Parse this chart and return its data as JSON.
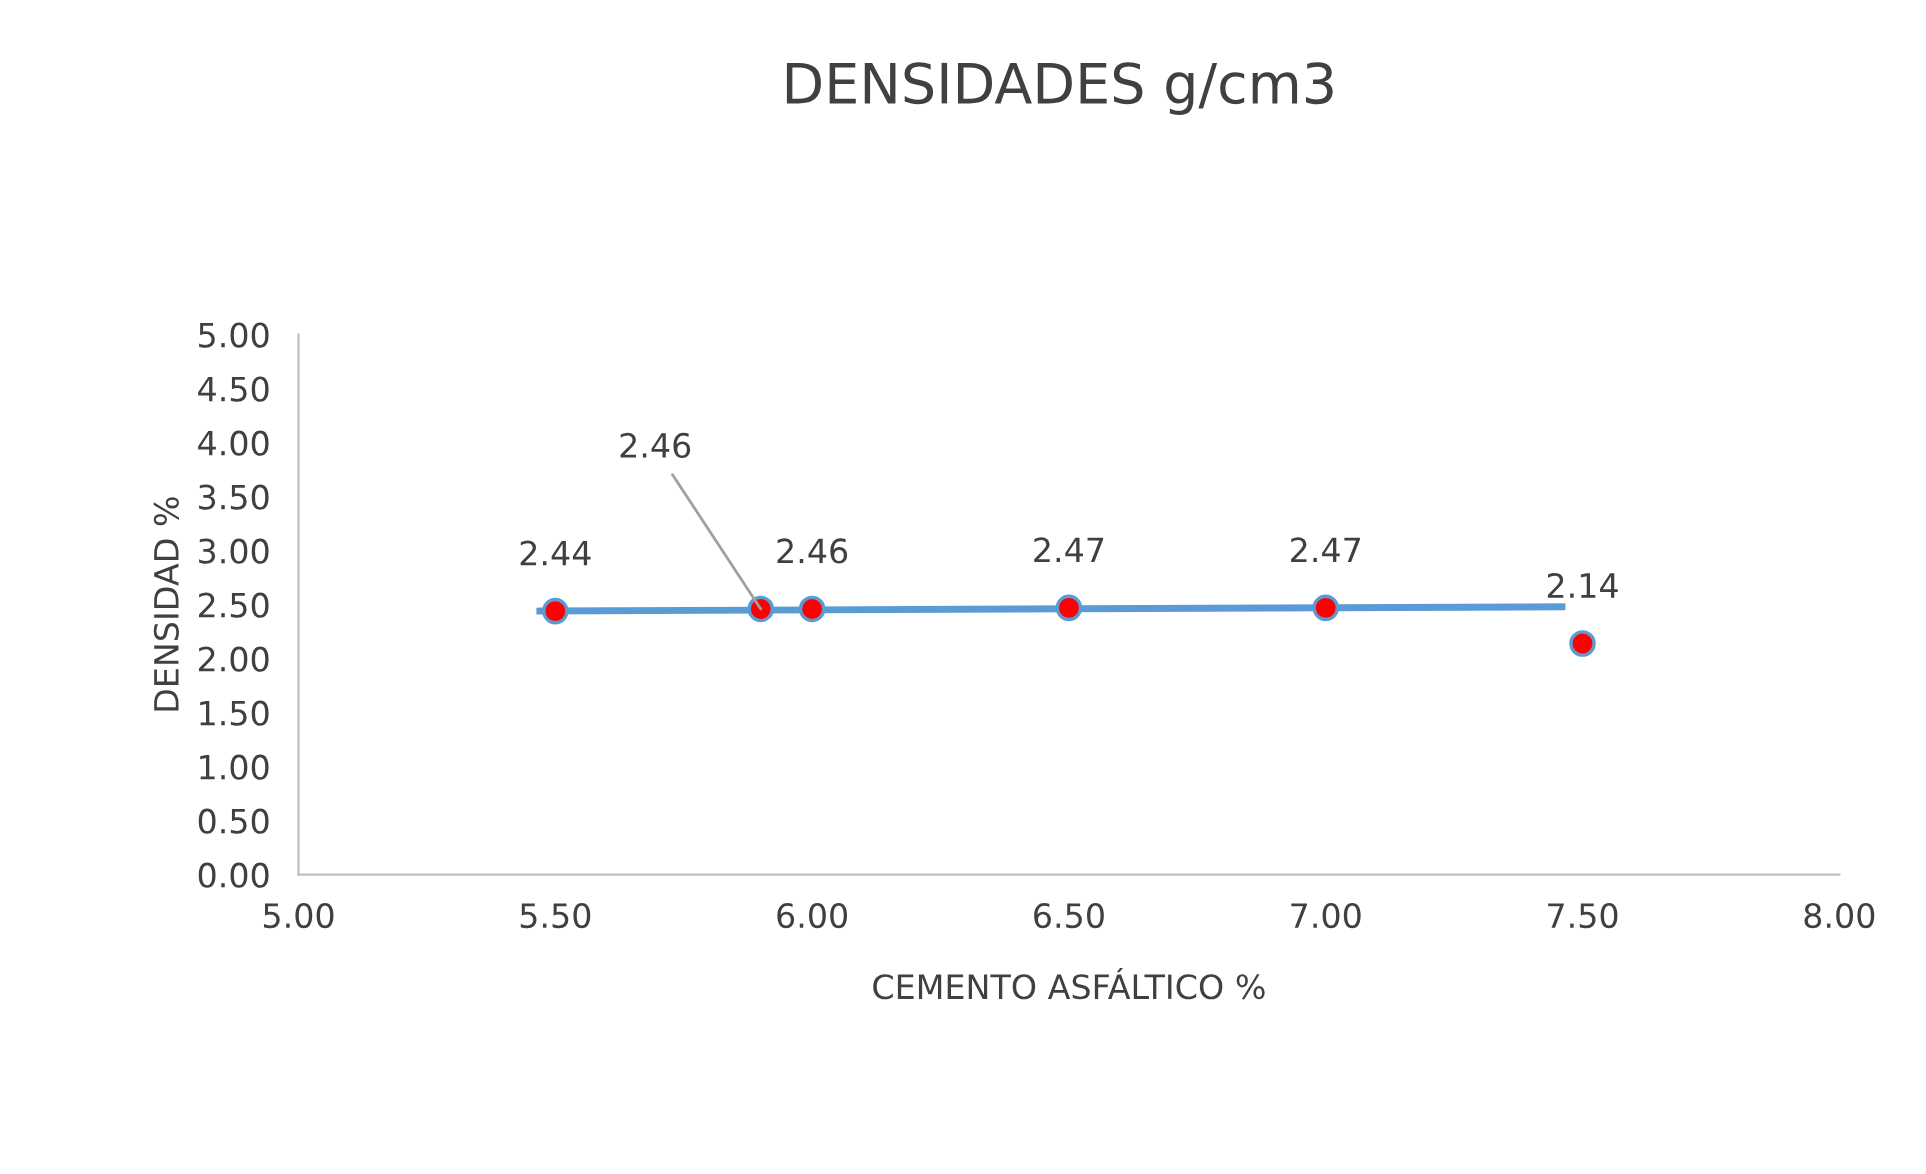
{
  "chart_data": {
    "type": "scatter",
    "title": "DENSIDADES g/cm3",
    "xlabel": "CEMENTO ASFÁLTICO %",
    "ylabel": "DENSIDAD %",
    "xlim": [
      5.0,
      8.0
    ],
    "xticks": [
      {
        "value": 5.0,
        "label": "5.00"
      },
      {
        "value": 5.5,
        "label": "5.50"
      },
      {
        "value": 6.0,
        "label": "6.00"
      },
      {
        "value": 6.5,
        "label": "6.50"
      },
      {
        "value": 7.0,
        "label": "7.00"
      },
      {
        "value": 7.5,
        "label": "7.50"
      },
      {
        "value": 8.0,
        "label": "8.00"
      }
    ],
    "ylim": [
      0,
      5
    ],
    "yticks": [
      {
        "value": 0,
        "label": "0.00"
      },
      {
        "value": 0.5,
        "label": "0.50"
      },
      {
        "value": 1,
        "label": "1.00"
      },
      {
        "value": 1.5,
        "label": "1.50"
      },
      {
        "value": 2,
        "label": "2.00"
      },
      {
        "value": 2.5,
        "label": "2.50"
      },
      {
        "value": 3,
        "label": "3.00"
      },
      {
        "value": 3.5,
        "label": "3.50"
      },
      {
        "value": 4,
        "label": "4.00"
      },
      {
        "value": 4.5,
        "label": "4.50"
      },
      {
        "value": 5,
        "label": "5.00"
      }
    ],
    "grid": false,
    "legend": false,
    "series": [
      {
        "type": "line",
        "marker": "none",
        "color": "#5b9bd5",
        "x": [
          5.47,
          7.46
        ],
        "values": [
          2.44,
          2.48
        ]
      },
      {
        "marker": "circle",
        "color": "#ff0000",
        "x": [
          5.5,
          5.9,
          6.0,
          6.5,
          7.0,
          7.5
        ],
        "values": [
          2.44,
          2.46,
          2.46,
          2.47,
          2.47,
          2.14
        ],
        "value_labels": [
          "2.44",
          "2.46",
          "2.46",
          "2.47",
          "2.47",
          "2.14"
        ]
      }
    ]
  }
}
